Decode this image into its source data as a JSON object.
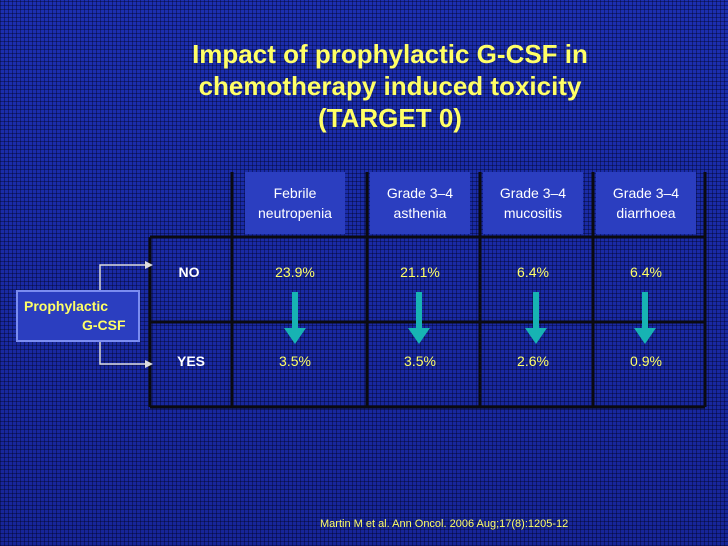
{
  "title": {
    "line1": "Impact of prophylactic G-CSF in",
    "line2": "chemotherapy induced toxicity",
    "line3": "(TARGET 0)"
  },
  "columns": [
    {
      "line1": "Febrile",
      "line2": "neutropenia"
    },
    {
      "line1": "Grade 3–4",
      "line2": "asthenia"
    },
    {
      "line1": "Grade 3–4",
      "line2": "mucositis"
    },
    {
      "line1": "Grade 3–4",
      "line2": "diarrhoea"
    }
  ],
  "rows": [
    {
      "label": "NO",
      "values": [
        "23.9%",
        "21.1%",
        "6.4%",
        "6.4%"
      ]
    },
    {
      "label": "YES",
      "values": [
        "3.5%",
        "3.5%",
        "2.6%",
        "0.9%"
      ]
    }
  ],
  "factor": {
    "line1": "Prophylactic",
    "line2": "G-CSF"
  },
  "citation": "Martin M et al. Ann Oncol. 2006 Aug;17(8):1205-12",
  "colors": {
    "title": "#ffff66",
    "arrow": "#17b3b3",
    "header_bg": "#2b3ec0"
  }
}
